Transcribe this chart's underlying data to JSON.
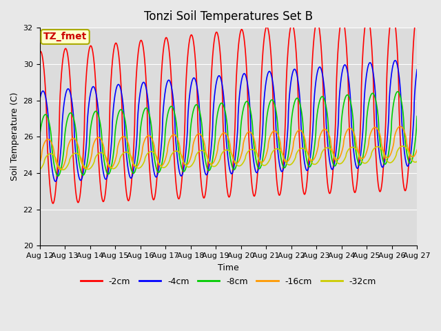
{
  "title": "Tonzi Soil Temperatures Set B",
  "xlabel": "Time",
  "ylabel": "Soil Temperature (C)",
  "annotation": "TZ_fmet",
  "ylim": [
    20,
    32
  ],
  "xlim": [
    0,
    15
  ],
  "x_tick_labels": [
    "Aug 12",
    "Aug 13",
    "Aug 14",
    "Aug 15",
    "Aug 16",
    "Aug 17",
    "Aug 18",
    "Aug 19",
    "Aug 20",
    "Aug 21",
    "Aug 22",
    "Aug 23",
    "Aug 24",
    "Aug 25",
    "Aug 26",
    "Aug 27"
  ],
  "series_colors": [
    "#ff0000",
    "#0000ff",
    "#00cc00",
    "#ff9900",
    "#cccc00"
  ],
  "series_labels": [
    "-2cm",
    "-4cm",
    "-8cm",
    "-16cm",
    "-32cm"
  ],
  "background_color": "#dcdcdc",
  "fig_bg_color": "#e8e8e8",
  "annotation_bg": "#ffffcc",
  "annotation_border": "#aaaa00",
  "annotation_text_color": "#cc0000",
  "grid_color": "#ffffff",
  "title_fontsize": 12,
  "axis_label_fontsize": 9,
  "tick_fontsize": 8,
  "legend_fontsize": 9,
  "linewidth": 1.2
}
